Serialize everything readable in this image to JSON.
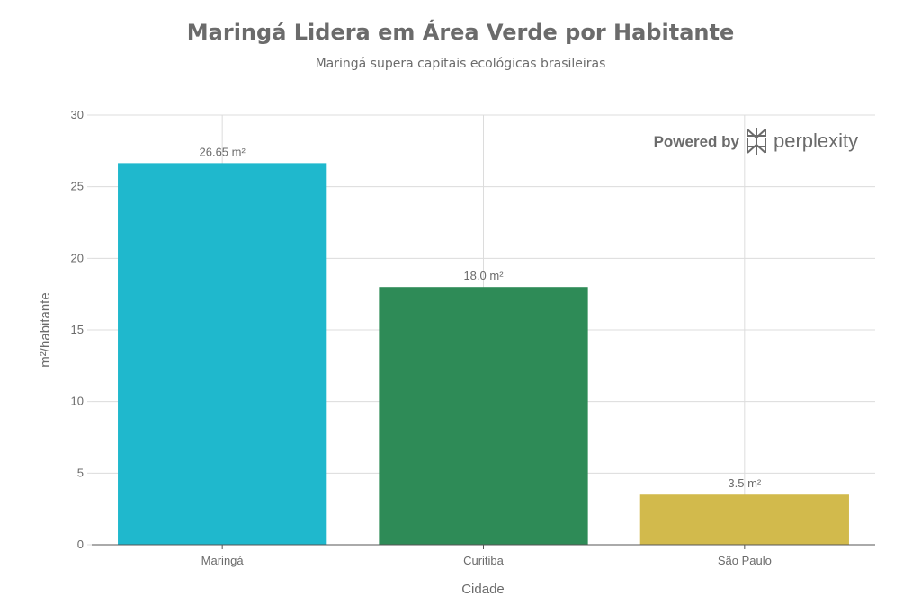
{
  "chart_data": {
    "type": "bar",
    "title": "Maringá Lidera em Área Verde por Habitante",
    "subtitle": "Maringá supera capitais ecológicas brasileiras",
    "xlabel": "Cidade",
    "ylabel": "m²/habitante",
    "categories": [
      "Maringá",
      "Curitiba",
      "São Paulo"
    ],
    "values": [
      26.65,
      18.0,
      3.5
    ],
    "data_labels": [
      "26.65 m²",
      "18.0 m²",
      "3.5 m²"
    ],
    "colors": [
      "#1fb8cd",
      "#2e8b57",
      "#d2ba4c"
    ],
    "ylim": [
      0,
      30
    ],
    "yticks": [
      0,
      5,
      10,
      15,
      20,
      25,
      30
    ],
    "grid": true,
    "legend": "none"
  },
  "branding": {
    "powered_by": "Powered by",
    "brand": "perplexity",
    "logo_icon": "perplexity-logo-icon"
  }
}
